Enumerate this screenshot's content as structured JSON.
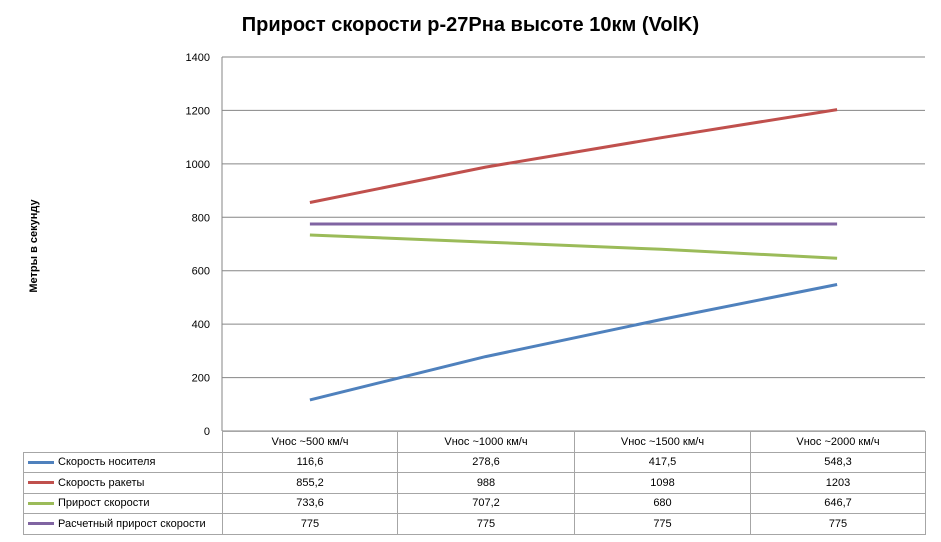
{
  "chart_data": {
    "type": "line",
    "title": "Прирост скорости р-27Рна высоте 10км (VolK)",
    "ylabel": "Метры в секунду",
    "xlabel": "",
    "ylim": [
      0,
      1400
    ],
    "yticks": [
      "0",
      "200",
      "400",
      "600",
      "800",
      "1000",
      "1200",
      "1400"
    ],
    "categories": [
      "Vнос ~500 км/ч",
      "Vнос ~1000 км/ч",
      "Vнос ~1500 км/ч",
      "Vнос ~2000 км/ч"
    ],
    "grid": true,
    "legend": "data-table",
    "series": [
      {
        "name": "Скорость носителя",
        "color": "#4f81bd",
        "values": [
          116.6,
          278.6,
          417.5,
          548.3
        ],
        "labels": [
          "116,6",
          "278,6",
          "417,5",
          "548,3"
        ]
      },
      {
        "name": "Скорость ракеты",
        "color": "#c0504d",
        "values": [
          855.2,
          988,
          1098,
          1203
        ],
        "labels": [
          "855,2",
          "988",
          "1098",
          "1203"
        ]
      },
      {
        "name": "Прирост скорости",
        "color": "#9bbb59",
        "values": [
          733.6,
          707.2,
          680,
          646.7
        ],
        "labels": [
          "733,6",
          "707,2",
          "680",
          "646,7"
        ]
      },
      {
        "name": "Расчетный прирост скорости",
        "color": "#8064a2",
        "values": [
          775,
          775,
          775,
          775
        ],
        "labels": [
          "775",
          "775",
          "775",
          "775"
        ]
      }
    ]
  }
}
